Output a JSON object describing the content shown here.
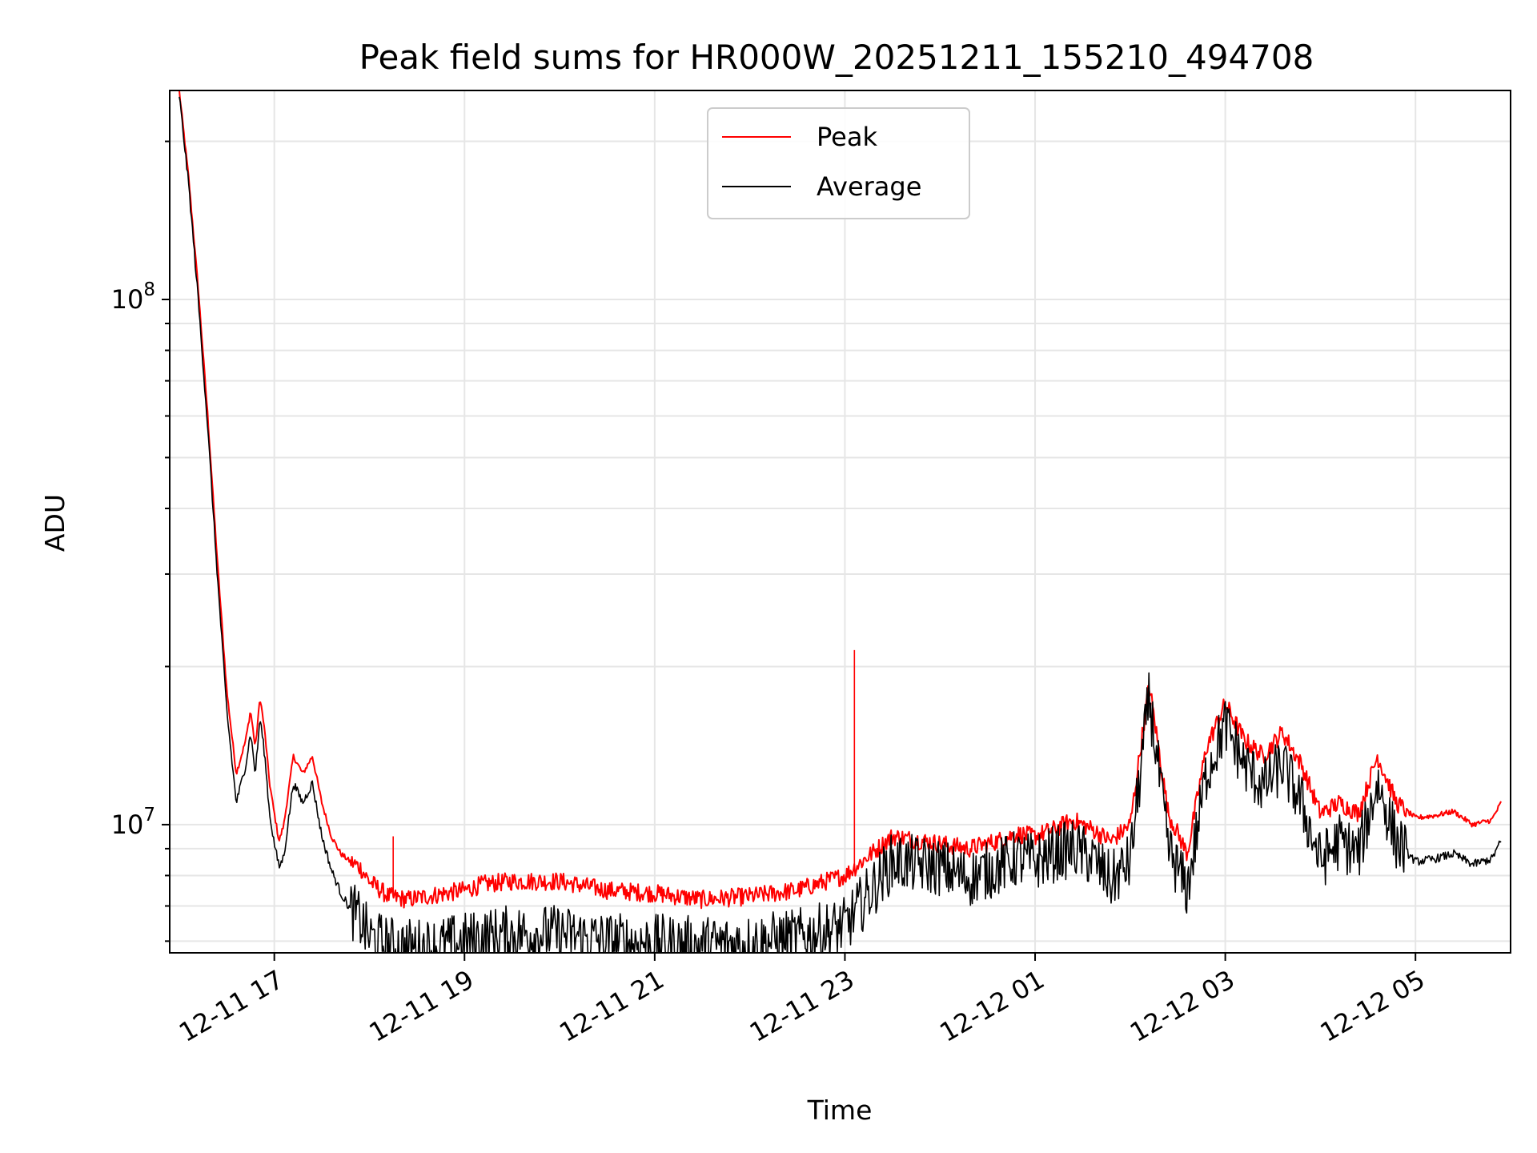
{
  "chart_data": {
    "type": "line",
    "title": "Peak field sums for HR000W_20251211_155210_494708",
    "xlabel": "Time",
    "ylabel": "ADU",
    "yscale": "log",
    "grid": true,
    "legend_position": "top-center",
    "xlim_hours": [
      -1.1,
      13.0
    ],
    "ylim": [
      5700000,
      250000000
    ],
    "x_ticks": [
      "12-11 17",
      "12-11 19",
      "12-11 21",
      "12-11 23",
      "12-12 01",
      "12-12 03",
      "12-12 05"
    ],
    "y_ticks": [
      {
        "value": 10000000,
        "base": "10",
        "exp": "7"
      },
      {
        "value": 100000000,
        "base": "10",
        "exp": "8"
      }
    ],
    "series": [
      {
        "name": "Peak",
        "color": "#ff0000",
        "x_hours": [
          -1.0,
          -0.9,
          -0.8,
          -0.7,
          -0.6,
          -0.5,
          -0.4,
          -0.3,
          -0.25,
          -0.2,
          -0.15,
          -0.1,
          -0.05,
          0.0,
          0.05,
          0.1,
          0.2,
          0.3,
          0.4,
          0.5,
          0.6,
          0.7,
          0.8,
          0.9,
          1.0,
          1.2,
          1.4,
          1.6,
          1.8,
          2.0,
          2.2,
          2.5,
          3.0,
          3.5,
          4.0,
          4.5,
          5.0,
          5.5,
          6.0,
          6.5,
          7.0,
          7.3,
          7.6,
          7.8,
          8.0,
          8.2,
          8.4,
          8.6,
          8.8,
          9.0,
          9.2,
          9.4,
          9.6,
          9.8,
          10.0,
          10.2,
          10.4,
          10.6,
          10.8,
          11.0,
          11.2,
          11.4,
          11.6,
          11.8,
          12.0,
          12.2,
          12.4,
          12.6,
          12.8,
          12.9
        ],
        "y": [
          250000000,
          170000000,
          105000000,
          60000000,
          32000000,
          18000000,
          12500000,
          14500000,
          16500000,
          14000000,
          17500000,
          15000000,
          12000000,
          10500000,
          9300000,
          10000000,
          13500000,
          12500000,
          13500000,
          11000000,
          9500000,
          8800000,
          8500000,
          8300000,
          7800000,
          7300000,
          7200000,
          7300000,
          7400000,
          7500000,
          7700000,
          7800000,
          7800000,
          7500000,
          7400000,
          7200000,
          7300000,
          7500000,
          8000000,
          9500000,
          9200000,
          9000000,
          9300000,
          9600000,
          9500000,
          9800000,
          10200000,
          9800000,
          9300000,
          10000000,
          18500000,
          10500000,
          8800000,
          14000000,
          17000000,
          14500000,
          13500000,
          15000000,
          13000000,
          10500000,
          11000000,
          10500000,
          13500000,
          11000000,
          10300000,
          10400000,
          10600000,
          10000000,
          10200000,
          11000000
        ],
        "spikes": [
          {
            "x_hours": 1.25,
            "y": 9500000
          },
          {
            "x_hours": 6.1,
            "y": 21500000
          }
        ]
      },
      {
        "name": "Average",
        "color": "#000000",
        "x_hours": [
          -1.0,
          -0.9,
          -0.8,
          -0.7,
          -0.6,
          -0.5,
          -0.4,
          -0.3,
          -0.25,
          -0.2,
          -0.15,
          -0.1,
          -0.05,
          0.0,
          0.05,
          0.1,
          0.2,
          0.3,
          0.4,
          0.5,
          0.6,
          0.7,
          0.8,
          0.9,
          1.0,
          1.2,
          1.4,
          1.6,
          1.8,
          2.0,
          2.2,
          2.5,
          3.0,
          3.5,
          4.0,
          4.5,
          5.0,
          5.5,
          6.0,
          6.5,
          7.0,
          7.3,
          7.6,
          7.8,
          8.0,
          8.2,
          8.4,
          8.6,
          8.8,
          9.0,
          9.2,
          9.4,
          9.6,
          9.8,
          10.0,
          10.2,
          10.4,
          10.6,
          10.8,
          11.0,
          11.2,
          11.4,
          11.6,
          11.8,
          12.0,
          12.2,
          12.4,
          12.6,
          12.8,
          12.9
        ],
        "y": [
          245000000,
          165000000,
          100000000,
          57000000,
          30000000,
          16500000,
          11000000,
          13000000,
          15000000,
          12500000,
          16000000,
          13500000,
          10500000,
          9200000,
          8300000,
          8700000,
          12000000,
          11000000,
          12000000,
          9500000,
          8200000,
          7400000,
          6900000,
          6600000,
          6100000,
          5900000,
          5850000,
          5850000,
          5900000,
          6000000,
          6100000,
          6200000,
          6200000,
          6000000,
          5950000,
          5900000,
          5950000,
          6100000,
          6400000,
          8500000,
          8300000,
          7900000,
          8300000,
          8600000,
          8500000,
          8800000,
          9000000,
          8600000,
          7800000,
          8500000,
          17500000,
          9000000,
          7500000,
          12500000,
          15500000,
          13000000,
          11800000,
          13000000,
          11000000,
          8500000,
          9300000,
          8800000,
          12000000,
          9300000,
          8500000,
          8600000,
          8800000,
          8400000,
          8600000,
          9300000
        ]
      }
    ]
  }
}
